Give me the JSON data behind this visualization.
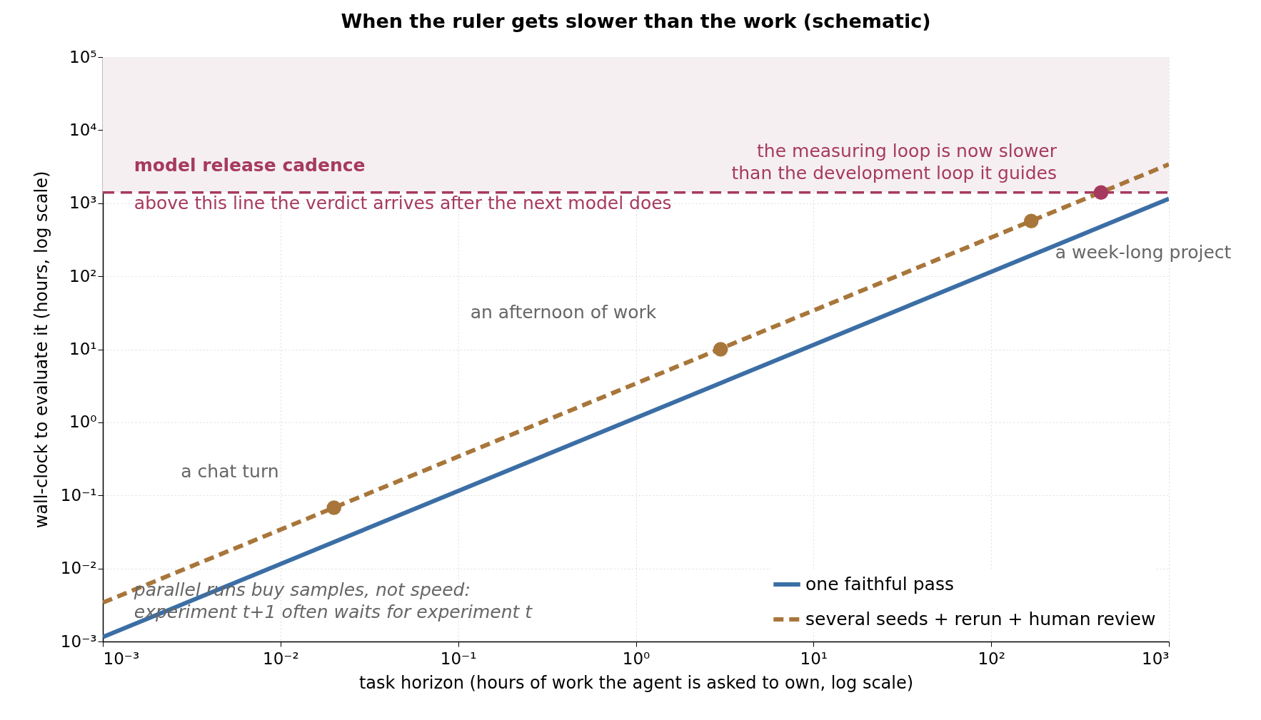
{
  "chart_data": {
    "type": "line",
    "title": "When the ruler gets slower than the work  (schematic)",
    "xlabel": "task horizon  (hours of work the agent is asked to own, log scale)",
    "ylabel": "wall-clock to evaluate it  (hours, log scale)",
    "log": "xy",
    "grid": true,
    "legend": "bottom right",
    "xlim": [
      0.001,
      1000
    ],
    "ylim": [
      0.001,
      100000
    ],
    "xticks": [
      {
        "value": 0.001,
        "label": "10⁻³"
      },
      {
        "value": 0.01,
        "label": "10⁻²"
      },
      {
        "value": 0.1,
        "label": "10⁻¹"
      },
      {
        "value": 1,
        "label": "10⁰"
      },
      {
        "value": 10,
        "label": "10¹"
      },
      {
        "value": 100,
        "label": "10²"
      },
      {
        "value": 1000,
        "label": "10³"
      }
    ],
    "yticks": [
      {
        "value": 0.001,
        "label": "10⁻³"
      },
      {
        "value": 0.01,
        "label": "10⁻²"
      },
      {
        "value": 0.1,
        "label": "10⁻¹"
      },
      {
        "value": 1,
        "label": "10⁰"
      },
      {
        "value": 10,
        "label": "10¹"
      },
      {
        "value": 100,
        "label": "10²"
      },
      {
        "value": 1000,
        "label": "10³"
      },
      {
        "value": 10000,
        "label": "10⁴"
      },
      {
        "value": 100000,
        "label": "10⁵"
      }
    ],
    "series": [
      {
        "name": "one faithful pass",
        "color": "#3b6ea5",
        "line_style": "solid",
        "x": [
          0.001,
          1000
        ],
        "values": [
          0.00115,
          1150
        ]
      },
      {
        "name": "several seeds + rerun + human review",
        "color": "#a8763a",
        "line_style": "dashed",
        "x": [
          0.001,
          1000
        ],
        "values": [
          0.0034,
          3400
        ]
      },
      {
        "type": "scatter",
        "color": "#a8763a",
        "marker": "circle",
        "x": [
          0.02,
          3,
          168
        ],
        "values": [
          0.068,
          10,
          571
        ]
      },
      {
        "type": "scatter",
        "color": "#a63a5e",
        "marker": "circle",
        "x": [
          415
        ],
        "values": [
          1400
        ]
      }
    ],
    "ref_lines": [
      {
        "axis": "y",
        "value": 1400,
        "label": "model release cadence",
        "color": "#a63a5e",
        "line_style": "dashed"
      }
    ],
    "bands": [
      {
        "axis": "y",
        "from": 1400,
        "to": 100000,
        "color": "#f5eff2"
      }
    ],
    "annotations": [
      "above this line the verdict arrives after the next model does",
      "the measuring loop is now slower\nthan the development loop it guides",
      "a week-long project",
      "an afternoon of work",
      "a chat turn",
      "parallel runs buy samples, not speed:\nexperiment t+1 often waits for experiment t"
    ]
  }
}
